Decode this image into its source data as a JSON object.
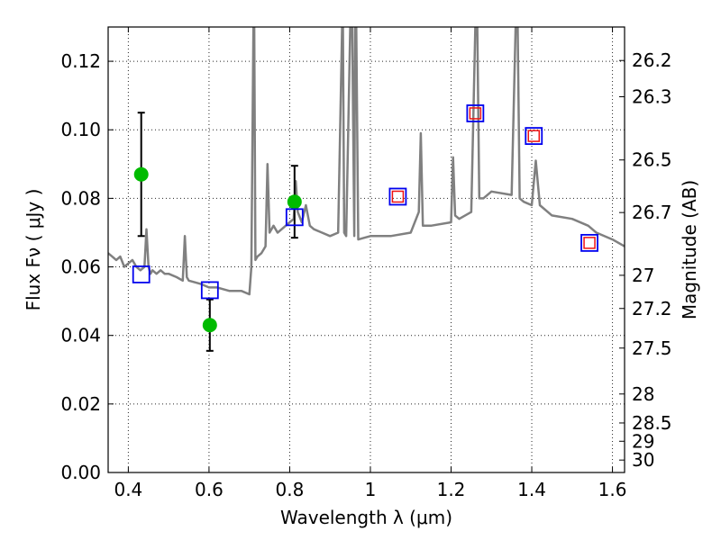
{
  "chart_data": {
    "type": "line",
    "xlabel": "Wavelength  λ (μm)",
    "ylabel": "Flux  Fν  ( μJy )",
    "ylabel_right": "Magnitude (AB)",
    "xlim": [
      0.35,
      1.63
    ],
    "ylim": [
      0.0,
      0.13
    ],
    "x_ticks": [
      0.4,
      0.6,
      0.8,
      1.0,
      1.2,
      1.4,
      1.6
    ],
    "x_tick_labels": [
      "0.4",
      "0.6",
      "0.8",
      "1",
      "1.2",
      "1.4",
      "1.6"
    ],
    "y_ticks": [
      0.0,
      0.02,
      0.04,
      0.06,
      0.08,
      0.1,
      0.12
    ],
    "y_tick_labels": [
      "0.00",
      "0.02",
      "0.04",
      "0.06",
      "0.08",
      "0.10",
      "0.12"
    ],
    "right_ticks": [
      26.2,
      26.3,
      26.5,
      26.7,
      27,
      27.2,
      27.5,
      28,
      28.5,
      29,
      30
    ],
    "right_tick_labels": [
      "26.2",
      "26.3",
      "26.5",
      "26.7",
      "27",
      "27.2",
      "27.5",
      "28",
      "28.5",
      "29",
      "30"
    ],
    "grid": true,
    "colors": {
      "spectrum": "#808080",
      "observed": "#00bb00",
      "model_box": "#0000ee",
      "model_inner": "#ee1111",
      "errorbar": "#000000"
    },
    "series": [
      {
        "type": "line",
        "x": [
          0.35,
          0.36,
          0.37,
          0.38,
          0.39,
          0.4,
          0.41,
          0.42,
          0.43,
          0.44,
          0.445,
          0.45,
          0.455,
          0.46,
          0.47,
          0.48,
          0.49,
          0.5,
          0.52,
          0.535,
          0.54,
          0.545,
          0.55,
          0.58,
          0.6,
          0.62,
          0.65,
          0.68,
          0.7,
          0.705,
          0.71,
          0.712,
          0.715,
          0.72,
          0.73,
          0.74,
          0.745,
          0.75,
          0.76,
          0.77,
          0.78,
          0.79,
          0.8,
          0.81,
          0.815,
          0.82,
          0.83,
          0.84,
          0.85,
          0.86,
          0.88,
          0.9,
          0.92,
          0.93,
          0.932,
          0.935,
          0.94,
          0.95,
          0.955,
          0.96,
          0.962,
          0.965,
          0.97,
          1.0,
          1.05,
          1.1,
          1.12,
          1.125,
          1.13,
          1.15,
          1.2,
          1.205,
          1.21,
          1.22,
          1.25,
          1.26,
          1.265,
          1.27,
          1.28,
          1.3,
          1.35,
          1.36,
          1.365,
          1.37,
          1.38,
          1.4,
          1.41,
          1.42,
          1.45,
          1.5,
          1.54,
          1.56,
          1.6,
          1.63
        ],
        "y": [
          0.064,
          0.063,
          0.062,
          0.063,
          0.06,
          0.061,
          0.062,
          0.06,
          0.059,
          0.06,
          0.071,
          0.06,
          0.058,
          0.059,
          0.058,
          0.059,
          0.058,
          0.058,
          0.057,
          0.056,
          0.069,
          0.057,
          0.056,
          0.055,
          0.054,
          0.054,
          0.053,
          0.053,
          0.052,
          0.06,
          0.13,
          0.13,
          0.062,
          0.063,
          0.064,
          0.066,
          0.09,
          0.07,
          0.072,
          0.07,
          0.071,
          0.072,
          0.073,
          0.074,
          0.085,
          0.076,
          0.073,
          0.078,
          0.072,
          0.071,
          0.07,
          0.069,
          0.07,
          0.13,
          0.13,
          0.07,
          0.069,
          0.13,
          0.13,
          0.069,
          0.13,
          0.13,
          0.068,
          0.069,
          0.069,
          0.07,
          0.076,
          0.099,
          0.072,
          0.072,
          0.073,
          0.092,
          0.075,
          0.074,
          0.076,
          0.13,
          0.13,
          0.08,
          0.08,
          0.082,
          0.081,
          0.13,
          0.13,
          0.08,
          0.079,
          0.078,
          0.091,
          0.078,
          0.075,
          0.074,
          0.072,
          0.07,
          0.068,
          0.066
        ]
      },
      {
        "type": "scatter",
        "x": [
          0.432,
          0.602,
          0.812
        ],
        "y": [
          0.087,
          0.043,
          0.079
        ],
        "yerr": [
          0.018,
          0.0075,
          0.0105
        ]
      },
      {
        "type": "scatter",
        "x": [
          0.432,
          0.602,
          0.812,
          1.068,
          1.26,
          1.405,
          1.543
        ],
        "y": [
          0.0578,
          0.0532,
          0.0745,
          0.0805,
          0.1048,
          0.0982,
          0.067
        ]
      },
      {
        "type": "scatter",
        "x": [
          1.068,
          1.26,
          1.405,
          1.543
        ],
        "y": [
          0.0805,
          0.1048,
          0.0982,
          0.067
        ]
      }
    ]
  }
}
